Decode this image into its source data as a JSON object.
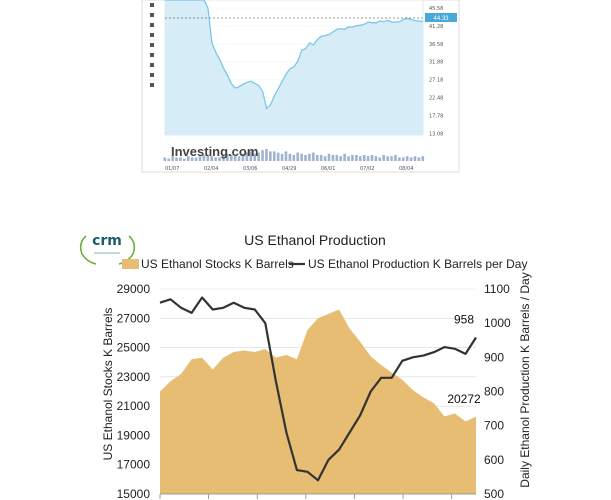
{
  "chart_data": [
    {
      "type": "area",
      "title": "",
      "watermark": "Investing.com",
      "y_ticks": [
        "45.58",
        "41.28",
        "36.58",
        "31.88",
        "27.18",
        "22.48",
        "17.78",
        "13.08"
      ],
      "x_ticks": [
        "01/07",
        "02/04",
        "03/06",
        "04/29",
        "06/01",
        "07/02",
        "08/04"
      ],
      "current_value_label": "44.33",
      "ylim": [
        13.08,
        50.28
      ],
      "series": [
        {
          "values": [
            50.3,
            50.3,
            50.3,
            50.3,
            50.3,
            50.3,
            50.3,
            50.3,
            50.3,
            50.3,
            50.3,
            48.0,
            38.5,
            35.8,
            33.9,
            31.5,
            29.5,
            27.2,
            26.0,
            26.4,
            27.1,
            27.6,
            27.9,
            27.3,
            26.7,
            25.0,
            20.4,
            21.4,
            24.0,
            25.9,
            28.0,
            29.9,
            31.4,
            31.9,
            33.5,
            36.4,
            36.9,
            38.5,
            37.9,
            39.4,
            40.3,
            40.5,
            40.8,
            41.5,
            42.2,
            42.4,
            42.2,
            42.9,
            42.8,
            43.2,
            43.3,
            43.6,
            44.2,
            44.0,
            44.0,
            44.5,
            44.3,
            44.7,
            44.2,
            44.2,
            44.3,
            44.9,
            45.2,
            44.9,
            44.6,
            44.5,
            44.3
          ]
        }
      ],
      "volume": [
        0.3,
        0.2,
        0.4,
        0.3,
        0.3,
        0.2,
        0.4,
        0.3,
        0.3,
        0.4,
        0.5,
        0.5,
        0.4,
        0.3,
        0.3,
        0.5,
        0.6,
        0.5,
        0.4,
        0.4,
        0.6,
        0.7,
        0.8,
        0.6,
        0.7,
        0.9,
        1.0,
        0.8,
        0.8,
        0.7,
        0.6,
        0.8,
        0.6,
        0.5,
        0.7,
        0.6,
        0.5,
        0.6,
        0.7,
        0.5,
        0.5,
        0.4,
        0.6,
        0.5,
        0.5,
        0.4,
        0.6,
        0.4,
        0.5,
        0.5,
        0.4,
        0.5,
        0.4,
        0.5,
        0.4,
        0.3,
        0.5,
        0.4,
        0.4,
        0.5,
        0.3,
        0.3,
        0.4,
        0.3,
        0.4,
        0.3,
        0.4
      ]
    },
    {
      "type": "line",
      "title": "US Ethanol Production",
      "logo_text": "crm",
      "ylabel": "US Ethanol Stocks K Barrels",
      "y2label": "Daily Ethanol Production K Barrels / Day",
      "ylim": [
        15000,
        29000
      ],
      "y2lim": [
        500,
        1100
      ],
      "y_ticks": [
        29000,
        27000,
        25000,
        23000,
        21000,
        19000,
        17000,
        15000
      ],
      "y2_ticks": [
        1100,
        1000,
        900,
        800,
        700,
        600,
        500
      ],
      "legend_position": "top",
      "x_count": 31,
      "series": [
        {
          "name": "US Ethanol Stocks K Barrels",
          "type": "area",
          "color": "#e6bd73",
          "axis": "left",
          "values": [
            22000,
            22700,
            23200,
            24200,
            24300,
            23500,
            24300,
            24700,
            24800,
            24700,
            24900,
            24300,
            24500,
            24200,
            26200,
            27000,
            27300,
            27600,
            26300,
            25400,
            24400,
            23800,
            23300,
            22800,
            22100,
            21600,
            21200,
            20300,
            20500,
            19950,
            20272
          ]
        },
        {
          "name": "US Ethanol Production K Barrels per Day",
          "type": "line",
          "color": "#333333",
          "axis": "right",
          "values": [
            1060,
            1070,
            1045,
            1030,
            1075,
            1040,
            1045,
            1060,
            1045,
            1040,
            1000,
            830,
            680,
            570,
            565,
            540,
            600,
            630,
            680,
            730,
            800,
            840,
            840,
            890,
            900,
            905,
            915,
            930,
            925,
            910,
            958
          ]
        }
      ],
      "annotations": [
        {
          "label": "958",
          "series": 1,
          "index": 30
        },
        {
          "label": "20272",
          "series": 0,
          "index": 30
        }
      ]
    }
  ]
}
